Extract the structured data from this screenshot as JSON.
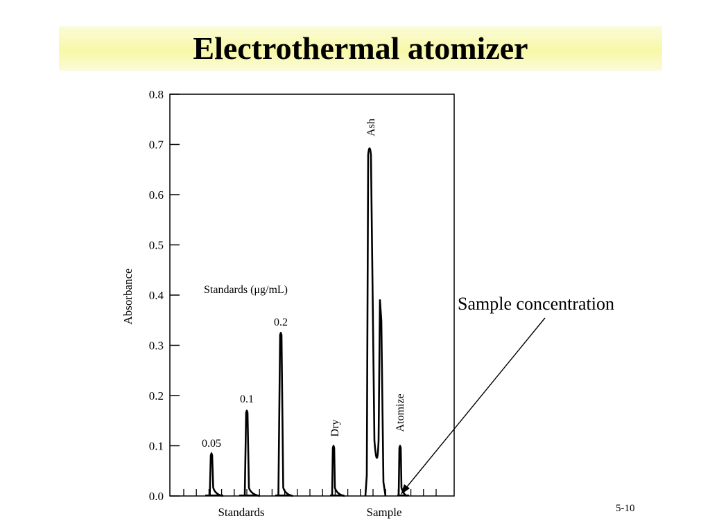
{
  "slide": {
    "title": "Electrothermal atomizer",
    "annotation": "Sample concentration",
    "page_number": "5-10"
  },
  "chart_data": {
    "type": "line",
    "ylabel": "Absorbance",
    "ylim": [
      0,
      0.8
    ],
    "yticks": [
      "0.0",
      "0.1",
      "0.2",
      "0.3",
      "0.4",
      "0.5",
      "0.6",
      "0.7",
      "0.8"
    ],
    "group_labels": [
      "Standards",
      "Sample"
    ],
    "inner_label": "Standards (μg/mL)",
    "series": [
      {
        "label": "0.05",
        "peak": 0.085
      },
      {
        "label": "0.1",
        "peak": 0.17
      },
      {
        "label": "0.2",
        "peak": 0.325
      },
      {
        "label": "Dry",
        "peak": 0.1
      },
      {
        "label": "Ash",
        "peak": 0.7
      },
      {
        "label": "",
        "peak": 0.39
      },
      {
        "label": "Atomize",
        "peak": 0.1
      }
    ],
    "grid": false
  }
}
